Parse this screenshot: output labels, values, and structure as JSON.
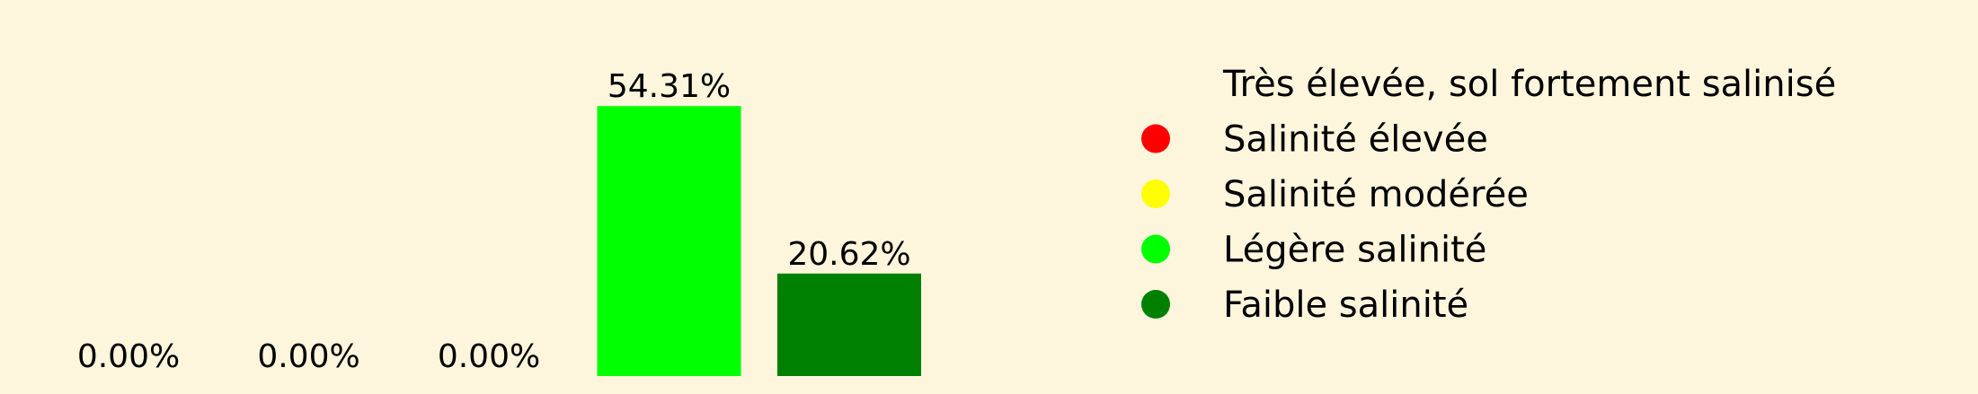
{
  "background_color": "#fdf6dc",
  "chart_data": {
    "type": "bar",
    "categories": [
      "Très élevée, sol fortement salinisé",
      "Salinité élevée",
      "Salinité modérée",
      "Légère salinité",
      "Faible salinité"
    ],
    "values": [
      0.0,
      0.0,
      0.0,
      54.31,
      20.62
    ],
    "data_labels": [
      "0.00%",
      "0.00%",
      "0.00%",
      "54.31%",
      "20.62%"
    ],
    "colors": [
      "#8b0000",
      "#ff0000",
      "#ffff00",
      "#00ff00",
      "#008000"
    ],
    "ylim": [
      0,
      65
    ],
    "grid": false,
    "legend": {
      "placement": "right",
      "entries": [
        {
          "label": "Très élevée, sol fortement salinisé",
          "color": null
        },
        {
          "label": "Salinité élevée",
          "color": "#ff0000"
        },
        {
          "label": "Salinité modérée",
          "color": "#ffff00"
        },
        {
          "label": "Légère salinité",
          "color": "#00ff00"
        },
        {
          "label": "Faible salinité",
          "color": "#008000"
        }
      ]
    }
  }
}
